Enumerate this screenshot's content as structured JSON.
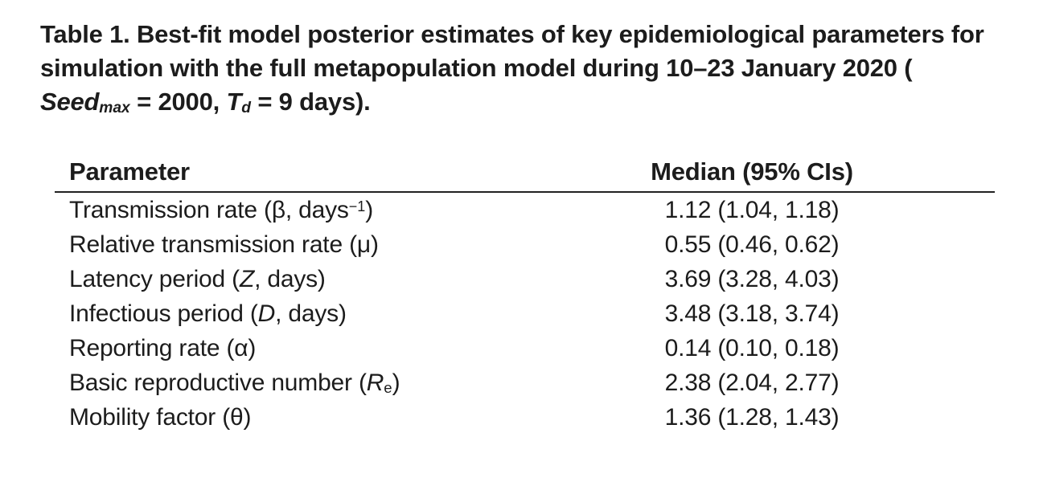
{
  "page": {
    "background": "#ffffff",
    "text_color": "#1c1c1c",
    "rule_color": "#222222"
  },
  "caption": {
    "full_text": "Table 1. Best-fit model posterior estimates of key epidemiological parameters for simulation with the full metapopulation model during 10–23 January 2020 (Seedmax = 2000, Td = 9 days).",
    "parts": [
      {
        "t": "Table 1. Best-fit model posterior estimates of key epidemiological parameters for simulation with the full metapopulation model during 10–23 January 2020 ( "
      },
      {
        "t": "Seed",
        "style": "i"
      },
      {
        "t": "max",
        "style": "isub"
      },
      {
        "t": " = 2000, "
      },
      {
        "t": "T",
        "style": "i"
      },
      {
        "t": "d",
        "style": "isub"
      },
      {
        "t": " = 9 days)."
      }
    ]
  },
  "table": {
    "columns": [
      {
        "label": "Parameter",
        "align": "left"
      },
      {
        "label": "Median (95% CIs)",
        "align": "center"
      }
    ],
    "rows": [
      {
        "parameter": "Transmission rate (β, days−1)",
        "parts": [
          {
            "t": "Transmission rate (β, days"
          },
          {
            "t": "−1",
            "style": "sup"
          },
          {
            "t": ")"
          }
        ],
        "median": "1.12 (1.04, 1.18)"
      },
      {
        "parameter": "Relative transmission rate (μ)",
        "parts": [
          {
            "t": "Relative transmission rate (μ)"
          }
        ],
        "median": "0.55 (0.46, 0.62)"
      },
      {
        "parameter": "Latency period (Z, days)",
        "parts": [
          {
            "t": "Latency period ("
          },
          {
            "t": "Z",
            "style": "i"
          },
          {
            "t": ", days)"
          }
        ],
        "median": "3.69 (3.28, 4.03)"
      },
      {
        "parameter": "Infectious period (D, days)",
        "parts": [
          {
            "t": "Infectious period ("
          },
          {
            "t": "D",
            "style": "i"
          },
          {
            "t": ", days)"
          }
        ],
        "median": "3.48 (3.18, 3.74)"
      },
      {
        "parameter": "Reporting rate (α)",
        "parts": [
          {
            "t": "Reporting rate (α)"
          }
        ],
        "median": "0.14 (0.10, 0.18)"
      },
      {
        "parameter": "Basic reproductive number (Re)",
        "parts": [
          {
            "t": "Basic reproductive number ("
          },
          {
            "t": "R",
            "style": "i"
          },
          {
            "t": "e",
            "style": "sub"
          },
          {
            "t": ")"
          }
        ],
        "median": "2.38 (2.04, 2.77)"
      },
      {
        "parameter": "Mobility factor (θ)",
        "parts": [
          {
            "t": "Mobility factor (θ)"
          }
        ],
        "median": "1.36 (1.28, 1.43)"
      }
    ]
  }
}
